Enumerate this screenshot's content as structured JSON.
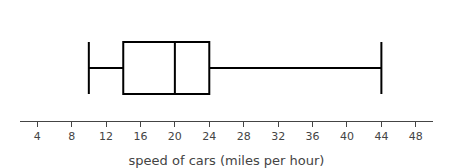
{
  "chart_data": {
    "type": "box",
    "orientation": "horizontal",
    "xlabel": "speed of cars (miles per hour)",
    "whisker_low": 10,
    "q1": 14,
    "median": 20,
    "q3": 24,
    "whisker_high": 44,
    "xlim": [
      2,
      50
    ],
    "xticks": [
      4,
      8,
      12,
      16,
      20,
      24,
      28,
      32,
      36,
      40,
      44,
      48
    ],
    "color": "#000000",
    "grid": false
  }
}
